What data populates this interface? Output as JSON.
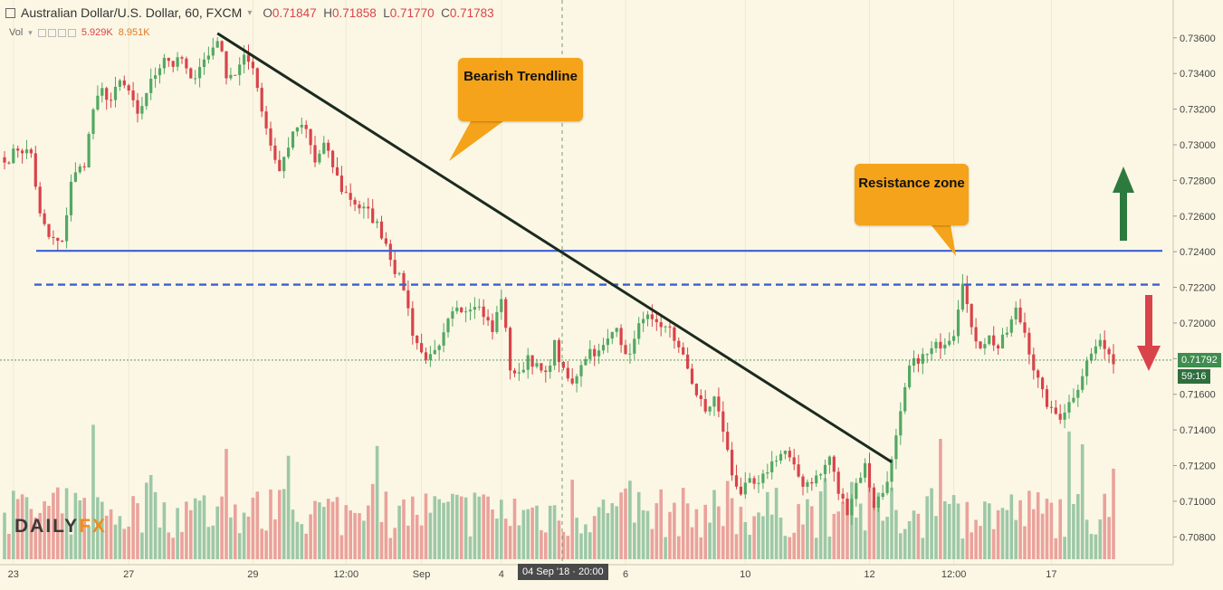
{
  "header": {
    "title": "Australian Dollar/U.S. Dollar, 60, FXCM",
    "ohlc": {
      "O": "0.71847",
      "H": "0.71858",
      "L": "0.71770",
      "C": "0.71783"
    },
    "o_label": "O",
    "h_label": "H",
    "l_label": "L",
    "c_label": "C"
  },
  "volume": {
    "label": "Vol",
    "value1": "5.929K",
    "value2": "8.951K"
  },
  "annotations": {
    "trendline_label": "Bearish Trendline",
    "resistance_label": "Resistance zone"
  },
  "logo": {
    "part1": "DAILY",
    "part2": "FX"
  },
  "price_tags": {
    "current": "0.71792",
    "countdown": "59:16"
  },
  "crosshair_date": "04 Sep '18 · 20:00",
  "colors": {
    "background": "#fbf7e4",
    "up": "#53a863",
    "down": "#d9434a",
    "vol_up": "#9dc8a8",
    "vol_down": "#eaa29c",
    "support_line": "#3b5fd1",
    "trendline": "#1c2a1f",
    "callout": "#f5a31a",
    "arrow_up": "#2d7a3f",
    "arrow_down": "#d9434a"
  },
  "chart_data": {
    "type": "candlestick",
    "symbol": "AUDUSD",
    "timeframe": "60",
    "y_axis": {
      "ticks": [
        "0.73600",
        "0.73400",
        "0.73200",
        "0.73000",
        "0.72800",
        "0.72600",
        "0.72400",
        "0.72200",
        "0.72000",
        "0.71800",
        "0.71600",
        "0.71400",
        "0.71200",
        "0.71000",
        "0.70800"
      ],
      "range": [
        0.707,
        0.7366
      ]
    },
    "x_axis": {
      "ticks": [
        "23",
        "27",
        "29",
        "12:00",
        "Sep",
        "4",
        "6",
        "10",
        "12",
        "12:00",
        "17"
      ],
      "tick_bar_index": [
        2,
        28,
        56,
        77,
        94,
        112,
        140,
        167,
        195,
        214,
        236
      ]
    },
    "levels": {
      "support_solid": 0.72405,
      "resistance_dashed": 0.72215,
      "current_price": 0.71792
    },
    "trendline": {
      "from": {
        "bar": 48,
        "price": 0.73625
      },
      "to": {
        "bar": 200,
        "price": 0.7122
      }
    },
    "keypoints": [
      [
        0,
        0.729
      ],
      [
        3,
        0.7298
      ],
      [
        6,
        0.7295
      ],
      [
        8,
        0.726
      ],
      [
        10,
        0.7248
      ],
      [
        13,
        0.7244
      ],
      [
        15,
        0.728
      ],
      [
        18,
        0.729
      ],
      [
        20,
        0.732
      ],
      [
        22,
        0.733
      ],
      [
        24,
        0.7325
      ],
      [
        26,
        0.7335
      ],
      [
        28,
        0.733
      ],
      [
        30,
        0.7315
      ],
      [
        32,
        0.733
      ],
      [
        34,
        0.734
      ],
      [
        36,
        0.735
      ],
      [
        38,
        0.7345
      ],
      [
        40,
        0.7348
      ],
      [
        42,
        0.7335
      ],
      [
        44,
        0.7345
      ],
      [
        46,
        0.735
      ],
      [
        48,
        0.736
      ],
      [
        50,
        0.734
      ],
      [
        52,
        0.734
      ],
      [
        54,
        0.7348
      ],
      [
        56,
        0.7345
      ],
      [
        58,
        0.732
      ],
      [
        60,
        0.73
      ],
      [
        62,
        0.7285
      ],
      [
        64,
        0.73
      ],
      [
        66,
        0.731
      ],
      [
        68,
        0.7308
      ],
      [
        70,
        0.729
      ],
      [
        72,
        0.73
      ],
      [
        74,
        0.7288
      ],
      [
        76,
        0.7275
      ],
      [
        78,
        0.727
      ],
      [
        80,
        0.7265
      ],
      [
        82,
        0.7262
      ],
      [
        84,
        0.7255
      ],
      [
        86,
        0.7245
      ],
      [
        88,
        0.723
      ],
      [
        90,
        0.722
      ],
      [
        92,
        0.7195
      ],
      [
        94,
        0.7183
      ],
      [
        96,
        0.718
      ],
      [
        98,
        0.7185
      ],
      [
        100,
        0.72
      ],
      [
        102,
        0.721
      ],
      [
        104,
        0.7208
      ],
      [
        106,
        0.7212
      ],
      [
        108,
        0.7205
      ],
      [
        110,
        0.7195
      ],
      [
        112,
        0.7215
      ],
      [
        114,
        0.7175
      ],
      [
        116,
        0.717
      ],
      [
        118,
        0.7182
      ],
      [
        120,
        0.7175
      ],
      [
        122,
        0.717
      ],
      [
        124,
        0.7188
      ],
      [
        126,
        0.7172
      ],
      [
        128,
        0.7165
      ],
      [
        130,
        0.7178
      ],
      [
        132,
        0.7185
      ],
      [
        134,
        0.7183
      ],
      [
        136,
        0.719
      ],
      [
        138,
        0.72
      ],
      [
        140,
        0.718
      ],
      [
        142,
        0.719
      ],
      [
        144,
        0.7205
      ],
      [
        146,
        0.72
      ],
      [
        148,
        0.7195
      ],
      [
        150,
        0.7198
      ],
      [
        152,
        0.7185
      ],
      [
        154,
        0.7175
      ],
      [
        156,
        0.716
      ],
      [
        158,
        0.715
      ],
      [
        160,
        0.7158
      ],
      [
        162,
        0.714
      ],
      [
        164,
        0.7115
      ],
      [
        166,
        0.7105
      ],
      [
        168,
        0.711
      ],
      [
        170,
        0.7108
      ],
      [
        172,
        0.7118
      ],
      [
        174,
        0.7125
      ],
      [
        176,
        0.7128
      ],
      [
        178,
        0.7118
      ],
      [
        180,
        0.711
      ],
      [
        182,
        0.7112
      ],
      [
        184,
        0.7115
      ],
      [
        186,
        0.7125
      ],
      [
        188,
        0.7105
      ],
      [
        190,
        0.7095
      ],
      [
        192,
        0.711
      ],
      [
        194,
        0.712
      ],
      [
        196,
        0.7098
      ],
      [
        198,
        0.7105
      ],
      [
        200,
        0.7122
      ],
      [
        202,
        0.7148
      ],
      [
        204,
        0.7175
      ],
      [
        206,
        0.718
      ],
      [
        208,
        0.7182
      ],
      [
        210,
        0.7187
      ],
      [
        212,
        0.719
      ],
      [
        214,
        0.7195
      ],
      [
        216,
        0.7225
      ],
      [
        218,
        0.7195
      ],
      [
        220,
        0.7188
      ],
      [
        222,
        0.7192
      ],
      [
        224,
        0.7186
      ],
      [
        226,
        0.7195
      ],
      [
        228,
        0.7207
      ],
      [
        230,
        0.7195
      ],
      [
        232,
        0.7175
      ],
      [
        234,
        0.716
      ],
      [
        236,
        0.715
      ],
      [
        238,
        0.7148
      ],
      [
        240,
        0.7155
      ],
      [
        242,
        0.7165
      ],
      [
        244,
        0.7178
      ],
      [
        246,
        0.7187
      ],
      [
        248,
        0.7188
      ],
      [
        250,
        0.7178
      ]
    ],
    "volume_max_k": 14,
    "bar_count": 251
  }
}
